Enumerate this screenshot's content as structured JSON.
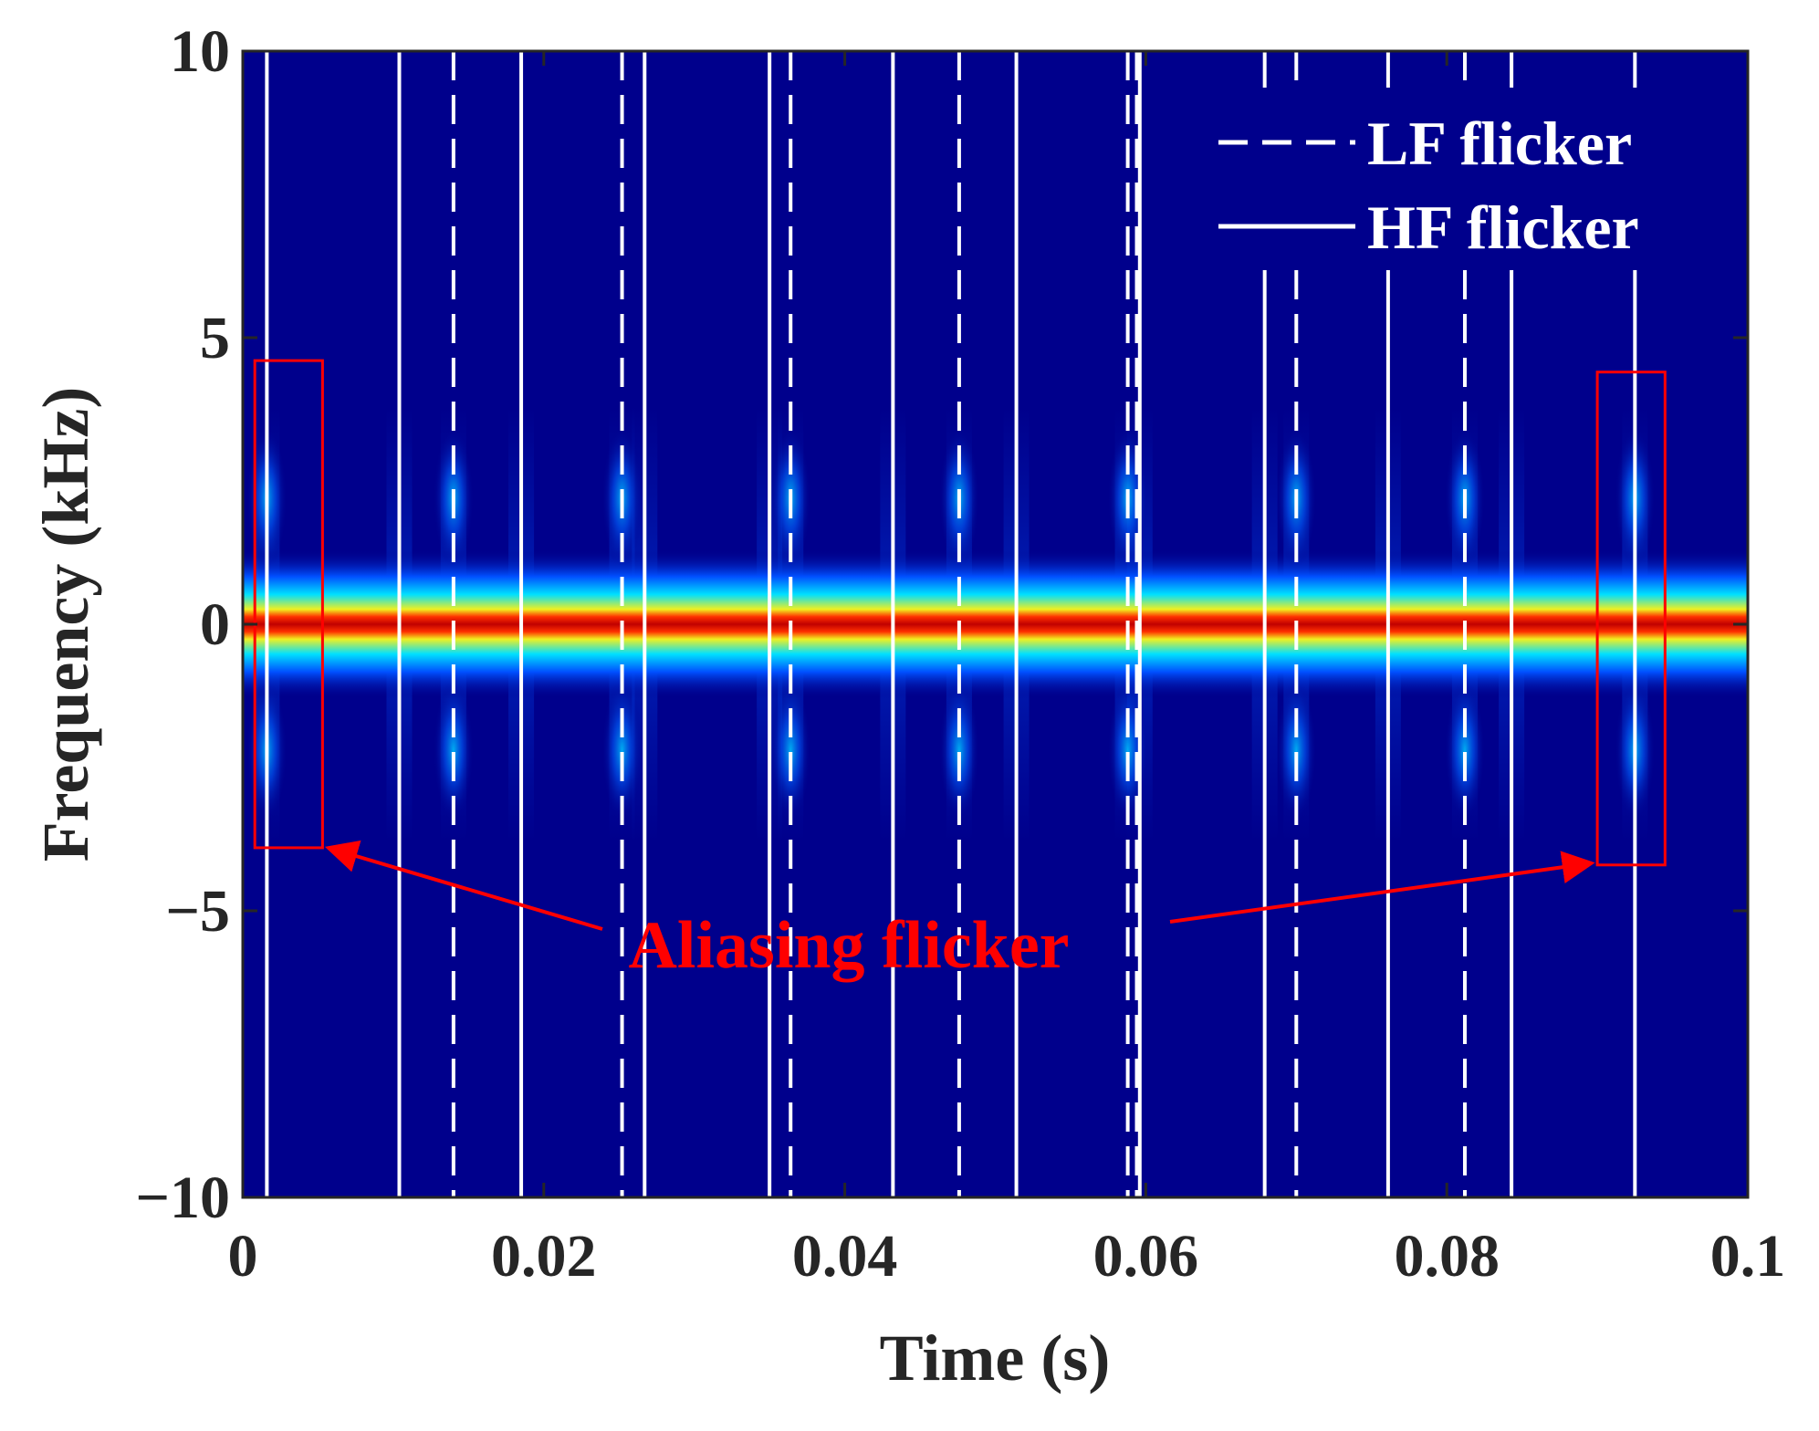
{
  "chart_data": {
    "type": "heatmap",
    "colormap": "jet",
    "background_color": "#00008c",
    "xlabel": "Time (s)",
    "ylabel": "Frequency (kHz)",
    "xlim": [
      0,
      0.1
    ],
    "ylim": [
      -10,
      10
    ],
    "x_ticks": [
      0,
      0.02,
      0.04,
      0.06,
      0.08,
      0.1
    ],
    "x_tick_labels": [
      "0",
      "0.02",
      "0.04",
      "0.06",
      "0.08",
      "0.1"
    ],
    "y_ticks": [
      10,
      5,
      0,
      -5,
      -10
    ],
    "y_tick_labels": [
      "10",
      "5",
      "0",
      "−5",
      "−10"
    ],
    "main_band": {
      "center_frequency": 0,
      "half_width": 0.5,
      "color": "#cc0000"
    },
    "legend": {
      "position": "top-right",
      "entries": [
        {
          "label": "LF flicker",
          "style": "dashed",
          "color": "#ffffff"
        },
        {
          "label": "HF flicker",
          "style": "solid",
          "color": "#ffffff"
        }
      ]
    },
    "hf_flicker_times": [
      0.0016,
      0.0104,
      0.0185,
      0.0267,
      0.035,
      0.0432,
      0.0514,
      0.0596,
      0.0679,
      0.0761,
      0.0843,
      0.0925
    ],
    "lf_flicker_times": [
      0.014,
      0.0252,
      0.0364,
      0.0476,
      0.0588,
      0.07,
      0.0812
    ],
    "lf_flicker_double_at": [
      0.0588
    ],
    "aliasing_boxes": [
      {
        "t0": 0.0008,
        "t1": 0.0053,
        "f_low": -3.9,
        "f_high": 4.6
      },
      {
        "t0": 0.09,
        "t1": 0.0945,
        "f_low": -4.2,
        "f_high": 4.4
      }
    ],
    "annotation": {
      "text": "Aliasing flicker",
      "color": "#ff0000"
    }
  }
}
